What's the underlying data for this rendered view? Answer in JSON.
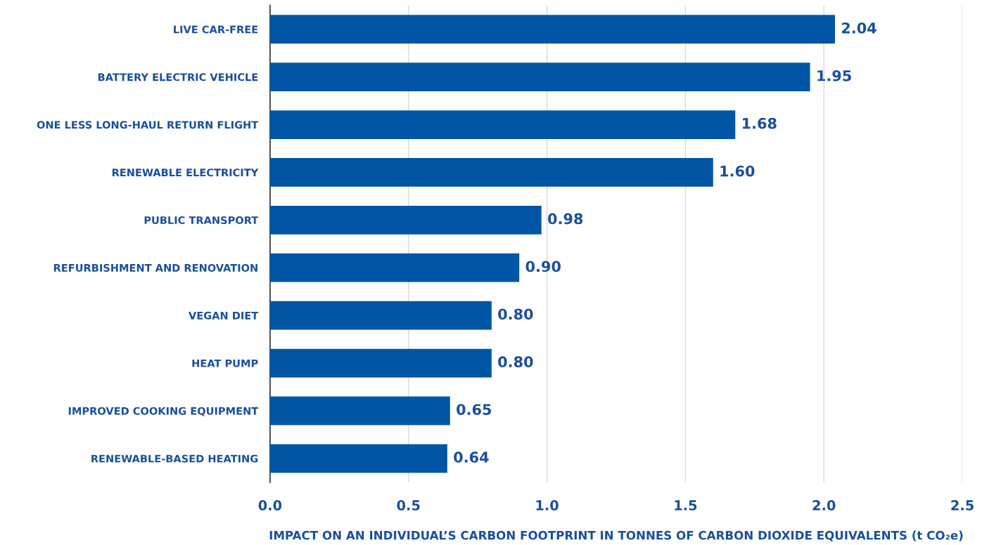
{
  "chart_data": {
    "type": "bar",
    "orientation": "horizontal",
    "categories": [
      "LIVE CAR-FREE",
      "BATTERY ELECTRIC VEHICLE",
      "ONE LESS LONG-HAUL RETURN FLIGHT",
      "RENEWABLE ELECTRICITY",
      "PUBLIC TRANSPORT",
      "REFURBISHMENT AND RENOVATION",
      "VEGAN DIET",
      "HEAT PUMP",
      "IMPROVED COOKING EQUIPMENT",
      "RENEWABLE-BASED HEATING"
    ],
    "values": [
      2.04,
      1.95,
      1.68,
      1.6,
      0.98,
      0.9,
      0.8,
      0.8,
      0.65,
      0.64
    ],
    "value_labels": [
      "2.04",
      "1.95",
      "1.68",
      "1.60",
      "0.98",
      "0.90",
      "0.80",
      "0.80",
      "0.65",
      "0.64"
    ],
    "color": "#0056a4",
    "xlabel": "IMPACT ON AN INDIVIDUAL’S CARBON FOOTPRINT IN TONNES OF CARBON DIOXIDE EQUIVALENTS (t CO₂e)",
    "xlim": [
      0,
      2.5
    ],
    "xticks": [
      {
        "value": 0,
        "label": "0.0"
      },
      {
        "value": 0.5,
        "label": "0.5"
      },
      {
        "value": 1,
        "label": "1.0"
      },
      {
        "value": 1.5,
        "label": "1.5"
      },
      {
        "value": 2,
        "label": "2.0"
      },
      {
        "value": 2.5,
        "label": "2.5"
      }
    ],
    "grid": "x"
  }
}
